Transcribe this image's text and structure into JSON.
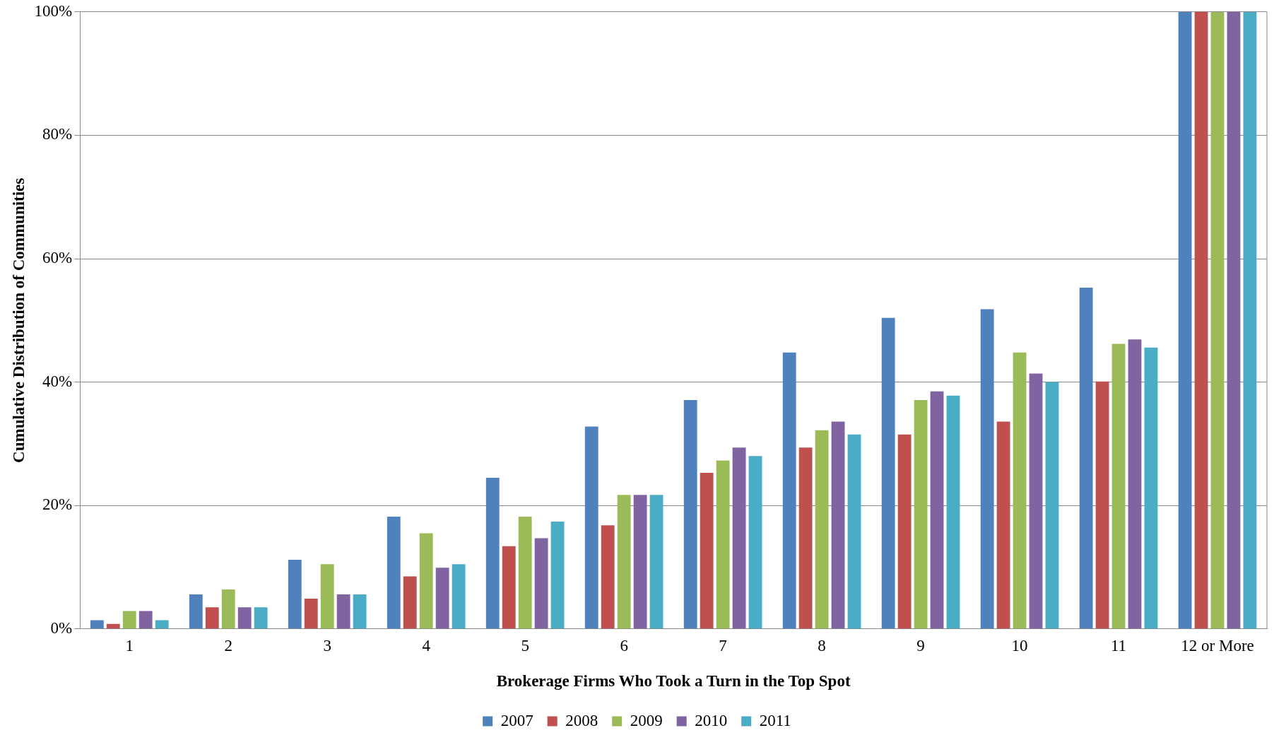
{
  "chart_data": {
    "type": "bar",
    "xlabel": "Brokerage Firms Who Took a Turn in the Top Spot",
    "ylabel": "Cumulative Distribution of Communities",
    "categories": [
      "1",
      "2",
      "3",
      "4",
      "5",
      "6",
      "7",
      "8",
      "9",
      "10",
      "11",
      "12 or More"
    ],
    "series": [
      {
        "name": "2007",
        "color": "#4f81bd",
        "values": [
          1.4,
          5.6,
          11.2,
          18.2,
          24.5,
          32.8,
          37.1,
          44.8,
          50.4,
          51.8,
          55.3,
          100
        ]
      },
      {
        "name": "2008",
        "color": "#c0504d",
        "values": [
          0.8,
          3.5,
          4.9,
          8.5,
          13.4,
          16.8,
          25.3,
          29.4,
          31.5,
          33.6,
          40.1,
          100
        ]
      },
      {
        "name": "2009",
        "color": "#9bbb59",
        "values": [
          2.9,
          6.4,
          10.5,
          15.5,
          18.2,
          21.7,
          27.3,
          32.2,
          37.1,
          44.8,
          46.2,
          100
        ]
      },
      {
        "name": "2010",
        "color": "#8064a2",
        "values": [
          2.9,
          3.5,
          5.6,
          9.9,
          14.7,
          21.7,
          29.4,
          33.6,
          38.5,
          41.4,
          46.9,
          100
        ]
      },
      {
        "name": "2011",
        "color": "#4bacc6",
        "values": [
          1.4,
          3.5,
          5.6,
          10.5,
          17.4,
          21.7,
          28.0,
          31.5,
          37.8,
          40.0,
          45.6,
          100
        ]
      }
    ],
    "ylim": [
      0,
      100
    ],
    "yticks": [
      {
        "value": 0,
        "label": "0%"
      },
      {
        "value": 20,
        "label": "20%"
      },
      {
        "value": 40,
        "label": "40%"
      },
      {
        "value": 60,
        "label": "60%"
      },
      {
        "value": 80,
        "label": "80%"
      },
      {
        "value": 100,
        "label": "100%"
      }
    ],
    "grid": "y",
    "legend": "bottom"
  }
}
